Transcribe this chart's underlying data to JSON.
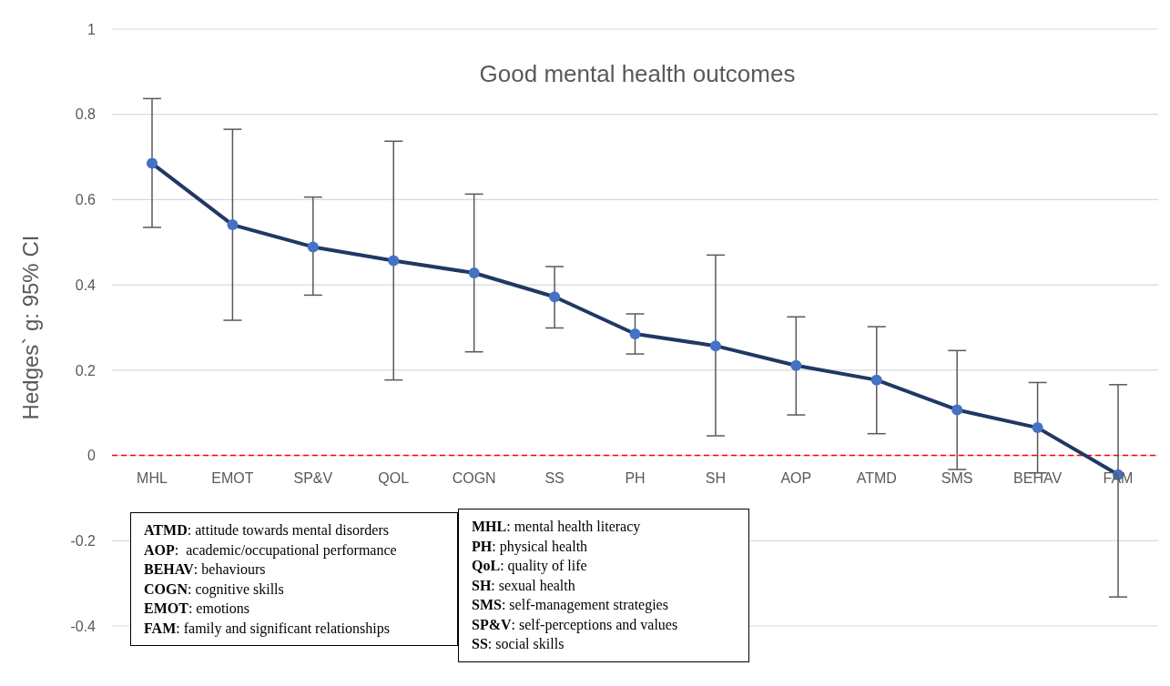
{
  "chart_data": {
    "type": "line",
    "title": "Good mental health outcomes",
    "ylabel": "Hedges` g: 95% CI",
    "categories": [
      "MHL",
      "EMOT",
      "SP&V",
      "QOL",
      "COGN",
      "SS",
      "PH",
      "SH",
      "AOP",
      "ATMD",
      "SMS",
      "BEHAV",
      "FAM"
    ],
    "series": [
      {
        "color": "#203864",
        "values": [
          0.685,
          0.541,
          0.489,
          0.457,
          0.428,
          0.372,
          0.285,
          0.257,
          0.211,
          0.177,
          0.107,
          0.065,
          -0.045
        ],
        "errors": [
          [
            0.535,
            0.837
          ],
          [
            0.317,
            0.765
          ],
          [
            0.376,
            0.606
          ],
          [
            0.177,
            0.737
          ],
          [
            0.243,
            0.613
          ],
          [
            0.299,
            0.443
          ],
          [
            0.238,
            0.332
          ],
          [
            0.046,
            0.47
          ],
          [
            0.095,
            0.325
          ],
          [
            0.051,
            0.302
          ],
          [
            -0.033,
            0.246
          ],
          [
            -0.041,
            0.171
          ],
          [
            -0.332,
            0.166
          ]
        ]
      }
    ],
    "marker": "circle",
    "line_style": "solid",
    "ylim": [
      -0.4,
      1
    ],
    "yticks": [
      -0.4,
      -0.2,
      0,
      0.2,
      0.4,
      0.6,
      0.8,
      1
    ],
    "grid": "y",
    "ref_lines": [
      {
        "axis": "y",
        "value": 0,
        "color": "#ff0000",
        "line_style": "dashed"
      }
    ],
    "annotations": [
      "ATMD: attitude towards mental disorders",
      "AOP:  academic/occupational performance",
      "BEHAV: behaviours",
      "COGN: cognitive skills",
      "EMOT: emotions",
      "FAM: family and significant relationships",
      "MHL: mental health literacy",
      "PH: physical health",
      "QoL: quality of life",
      "SH: sexual health",
      "SMS: self-management strategies",
      "SP&V: self-perceptions and values",
      "SS: social skills"
    ]
  }
}
